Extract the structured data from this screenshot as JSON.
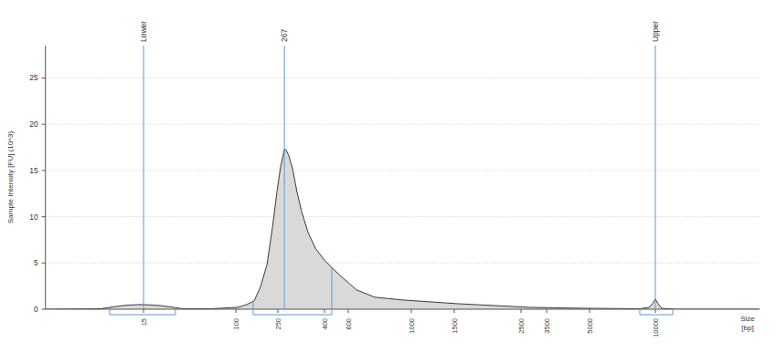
{
  "chart_data": {
    "type": "area",
    "y_label": "Sample Intensity [FU] (10^3)",
    "x_label": "Size [bp]",
    "x": [
      2,
      6.2,
      7.5,
      9.9,
      13.2,
      15,
      21,
      27.9,
      33.6,
      59,
      104,
      127,
      149,
      171,
      197,
      222,
      245,
      257,
      267,
      272,
      279,
      290,
      303,
      318,
      339,
      365,
      400,
      453,
      546,
      641,
      744,
      929,
      1188,
      1531,
      2027,
      2820,
      4815,
      8490,
      9350,
      9710,
      10000,
      10290,
      10690,
      12480,
      30000
    ],
    "values": [
      0,
      0.05,
      0.2,
      0.4,
      0.5,
      0.5,
      0.4,
      0.2,
      0.05,
      0.05,
      0.2,
      0.5,
      0.9,
      2.4,
      4.8,
      8.8,
      12.7,
      15.4,
      17.3,
      17.2,
      16.6,
      15.2,
      12.7,
      10.5,
      8.3,
      6.6,
      5.3,
      4.5,
      3.4,
      2.1,
      1.3,
      1.0,
      0.8,
      0.6,
      0.4,
      0.2,
      0.1,
      0.05,
      0.2,
      0.6,
      1.1,
      0.6,
      0.1,
      0,
      0
    ],
    "color": "#d9d9d9",
    "xlim": [
      2,
      30000
    ],
    "ylim": [
      0,
      28.5
    ],
    "xticks": [
      15,
      100,
      250,
      400,
      600,
      1000,
      1500,
      2500,
      3500,
      5000,
      10000
    ],
    "yticks": [
      0,
      5,
      10,
      15,
      20,
      25
    ],
    "grid": true,
    "peaks": [
      {
        "x": 15,
        "label": "Lower"
      },
      {
        "x": 267
      },
      {
        "x": 10000,
        "label": "Upper"
      }
    ],
    "regions": [
      {
        "from": 7.5,
        "to": 28.9
      },
      {
        "from": 146,
        "to": 453
      },
      {
        "from": 8490,
        "to": 12010
      }
    ]
  }
}
